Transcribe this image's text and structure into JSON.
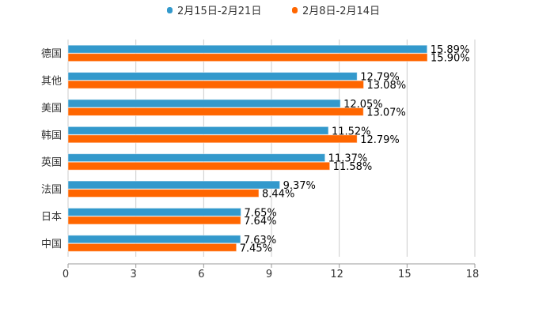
{
  "chart_data": {
    "type": "bar",
    "orientation": "horizontal",
    "categories": [
      "德国",
      "其他",
      "美国",
      "韩国",
      "英国",
      "法国",
      "日本",
      "中国"
    ],
    "series": [
      {
        "name": "2月15日-2月21日",
        "color": "#3399cc",
        "values": [
          15.89,
          12.79,
          12.05,
          11.52,
          11.37,
          9.37,
          7.65,
          7.63
        ],
        "labels": [
          "15.89%",
          "12.79%",
          "12.05%",
          "11.52%",
          "11.37%",
          "9.37%",
          "7.65%",
          "7.63%"
        ]
      },
      {
        "name": "2月8日-2月14日",
        "color": "#ff6600",
        "values": [
          15.9,
          13.08,
          13.07,
          12.79,
          11.58,
          8.44,
          7.64,
          7.45
        ],
        "labels": [
          "15.90%",
          "13.08%",
          "13.07%",
          "12.79%",
          "11.58%",
          "8.44%",
          "7.64%",
          "7.45%"
        ]
      }
    ],
    "xlim": [
      0,
      18
    ],
    "xticks": [
      "0",
      "3",
      "6",
      "9",
      "12",
      "15",
      "18"
    ],
    "grid": true,
    "legend": "top-center",
    "title": "",
    "xlabel": "",
    "ylabel": ""
  }
}
